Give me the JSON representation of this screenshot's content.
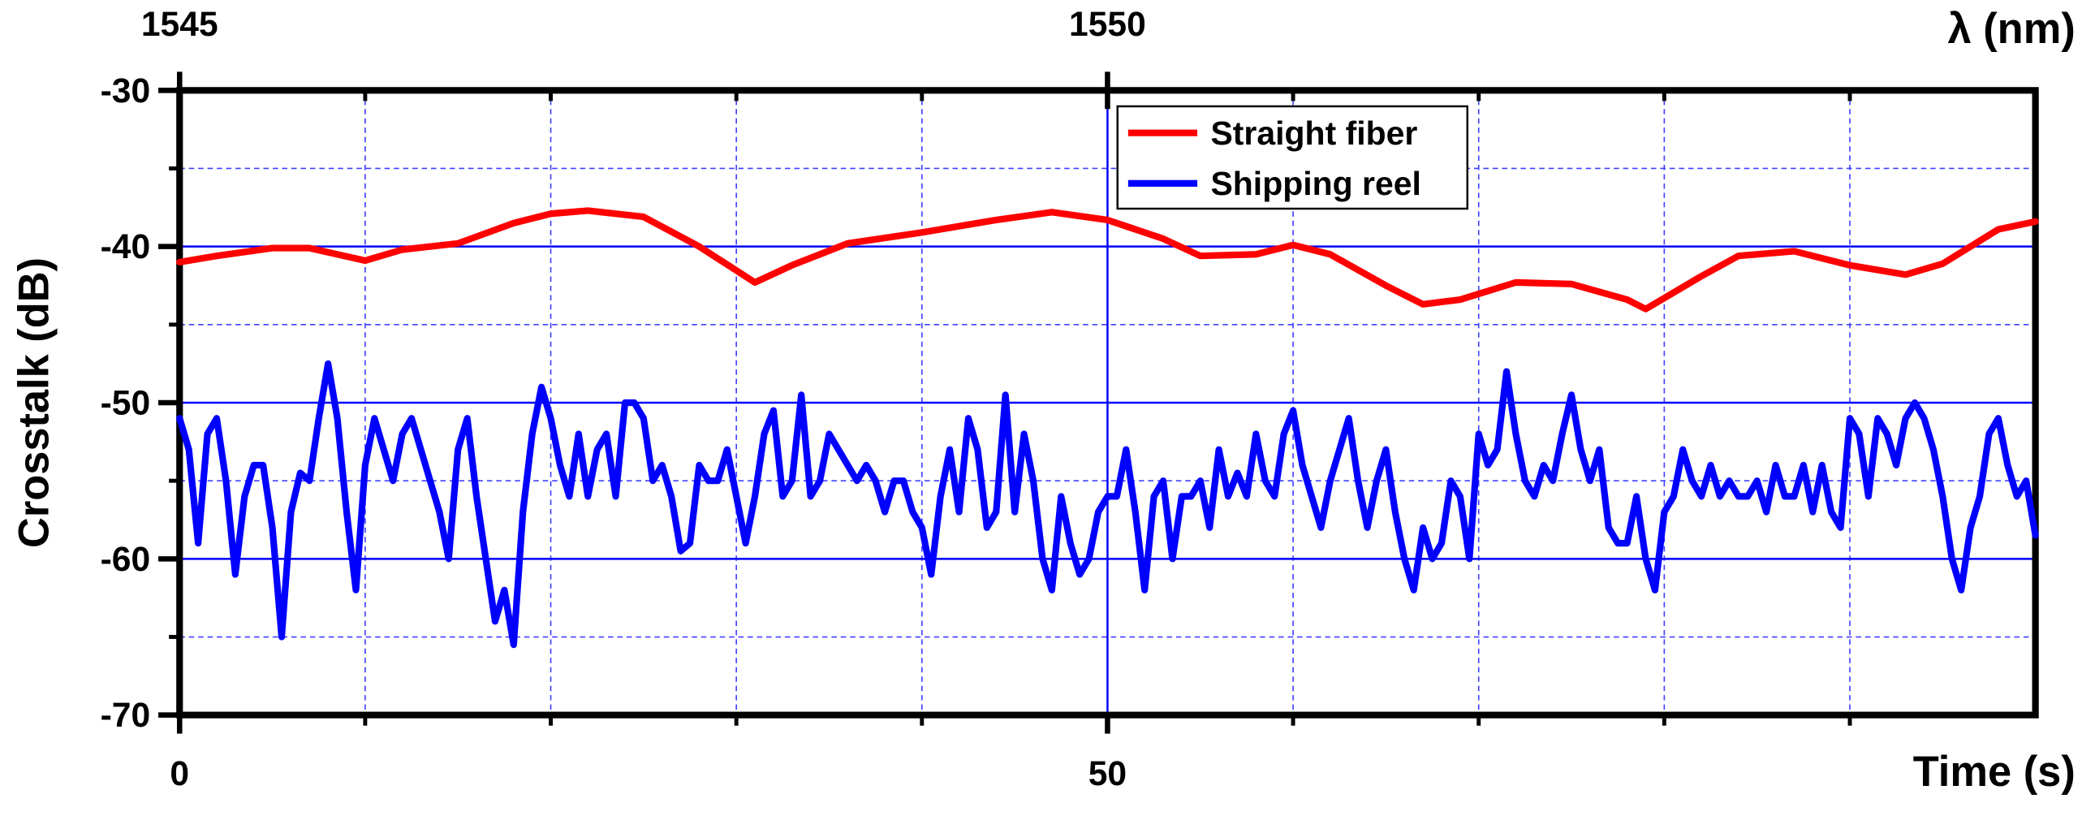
{
  "chart_data": {
    "type": "line",
    "xlabel": "Time (s)",
    "ylabel": "Crosstalk (dB)",
    "x2label": "λ (nm)",
    "xlim": [
      0,
      100
    ],
    "xticks": [
      0,
      50
    ],
    "x2lim": [
      1545,
      1555
    ],
    "x2ticks": [
      1545,
      1550
    ],
    "ylim": [
      -70,
      -30
    ],
    "yticks": [
      -30,
      -40,
      -50,
      -60,
      -70
    ],
    "grid": true,
    "series": [
      {
        "name": "Straight fiber",
        "color": "#ff0000",
        "x": [
          0,
          2,
          5,
          7,
          10,
          12,
          15,
          18,
          20,
          22,
          25,
          28,
          31,
          33,
          36,
          40,
          44,
          47,
          50,
          53,
          55,
          58,
          60,
          62,
          65,
          67,
          69,
          72,
          75,
          78,
          79,
          82,
          84,
          87,
          90,
          93,
          95,
          98,
          100
        ],
        "values": [
          -41.0,
          -40.6,
          -40.1,
          -40.1,
          -40.9,
          -40.2,
          -39.8,
          -38.5,
          -37.9,
          -37.7,
          -38.1,
          -40.0,
          -42.3,
          -41.2,
          -39.8,
          -39.1,
          -38.3,
          -37.8,
          -38.3,
          -39.5,
          -40.6,
          -40.5,
          -39.9,
          -40.5,
          -42.5,
          -43.7,
          -43.4,
          -42.3,
          -42.4,
          -43.4,
          -44.0,
          -41.9,
          -40.6,
          -40.3,
          -41.2,
          -41.8,
          -41.1,
          -38.9,
          -38.4
        ]
      },
      {
        "name": "Shipping reel",
        "color": "#0000ff",
        "x": [
          0,
          0.5,
          1,
          1.5,
          2,
          2.5,
          3,
          3.5,
          4,
          4.5,
          5,
          5.5,
          6,
          6.5,
          7,
          7.5,
          8,
          8.5,
          9,
          9.5,
          10,
          10.5,
          11,
          11.5,
          12,
          12.5,
          13,
          13.5,
          14,
          14.5,
          15,
          15.5,
          16,
          16.5,
          17,
          17.5,
          18,
          18.5,
          19,
          19.5,
          20,
          20.5,
          21,
          21.5,
          22,
          22.5,
          23,
          23.5,
          24,
          24.5,
          25,
          25.5,
          26,
          26.5,
          27,
          27.5,
          28,
          28.5,
          29,
          29.5,
          30,
          30.5,
          31,
          31.5,
          32,
          32.5,
          33,
          33.5,
          34,
          34.5,
          35,
          35.5,
          36,
          36.5,
          37,
          37.5,
          38,
          38.5,
          39,
          39.5,
          40,
          40.5,
          41,
          41.5,
          42,
          42.5,
          43,
          43.5,
          44,
          44.5,
          45,
          45.5,
          46,
          46.5,
          47,
          47.5,
          48,
          48.5,
          49,
          49.5,
          50,
          50.5,
          51,
          51.5,
          52,
          52.5,
          53,
          53.5,
          54,
          54.5,
          55,
          55.5,
          56,
          56.5,
          57,
          57.5,
          58,
          58.5,
          59,
          59.5,
          60,
          60.5,
          61,
          61.5,
          62,
          62.5,
          63,
          63.5,
          64,
          64.5,
          65,
          65.5,
          66,
          66.5,
          67,
          67.5,
          68,
          68.5,
          69,
          69.5,
          70,
          70.5,
          71,
          71.5,
          72,
          72.5,
          73,
          73.5,
          74,
          74.5,
          75,
          75.5,
          76,
          76.5,
          77,
          77.5,
          78,
          78.5,
          79,
          79.5,
          80,
          80.5,
          81,
          81.5,
          82,
          82.5,
          83,
          83.5,
          84,
          84.5,
          85,
          85.5,
          86,
          86.5,
          87,
          87.5,
          88,
          88.5,
          89,
          89.5,
          90,
          90.5,
          91,
          91.5,
          92,
          92.5,
          93,
          93.5,
          94,
          94.5,
          95,
          95.5,
          96,
          96.5,
          97,
          97.5,
          98,
          98.5,
          99,
          99.5,
          100
        ],
        "values": [
          -51,
          -53,
          -59,
          -52,
          -51,
          -55,
          -61,
          -56,
          -54,
          -54,
          -58,
          -65,
          -57,
          -54.5,
          -55,
          -51,
          -47.5,
          -51,
          -57,
          -62,
          -54,
          -51,
          -53,
          -55,
          -52,
          -51,
          -53,
          -55,
          -57,
          -60,
          -53,
          -51,
          -56,
          -60,
          -64,
          -62,
          -65.5,
          -57,
          -52,
          -49,
          -51,
          -54,
          -56,
          -52,
          -56,
          -53,
          -52,
          -56,
          -50,
          -50,
          -51,
          -55,
          -54,
          -56,
          -59.5,
          -59,
          -54,
          -55,
          -55,
          -53,
          -56,
          -59,
          -56,
          -52,
          -50.5,
          -56,
          -55,
          -49.5,
          -56,
          -55,
          -52,
          -53,
          -54,
          -55,
          -54,
          -55,
          -57,
          -55,
          -55,
          -57,
          -58,
          -61,
          -56,
          -53,
          -57,
          -51,
          -53,
          -58,
          -57,
          -49.5,
          -57,
          -52,
          -55,
          -60,
          -62,
          -56,
          -59,
          -61,
          -60,
          -57,
          -56,
          -56,
          -53,
          -57,
          -62,
          -56,
          -55,
          -60,
          -56,
          -56,
          -55,
          -58,
          -53,
          -56,
          -54.5,
          -56,
          -52,
          -55,
          -56,
          -52,
          -50.5,
          -54,
          -56,
          -58,
          -55,
          -53,
          -51,
          -55,
          -58,
          -55,
          -53,
          -57,
          -60,
          -62,
          -58,
          -60,
          -59,
          -55,
          -56,
          -60,
          -52,
          -54,
          -53,
          -48,
          -52,
          -55,
          -56,
          -54,
          -55,
          -52,
          -49.5,
          -53,
          -55,
          -53,
          -58,
          -59,
          -59,
          -56,
          -60,
          -62,
          -57,
          -56,
          -53,
          -55,
          -56,
          -54,
          -56,
          -55,
          -56,
          -56,
          -55,
          -57,
          -54,
          -56,
          -56,
          -54,
          -57,
          -54,
          -57,
          -58,
          -51,
          -52,
          -56,
          -51,
          -52,
          -54,
          -51,
          -50,
          -51,
          -53,
          -56,
          -60,
          -62,
          -58,
          -56,
          -52,
          -51,
          -54,
          -56,
          -55,
          -58.5
        ]
      }
    ]
  }
}
